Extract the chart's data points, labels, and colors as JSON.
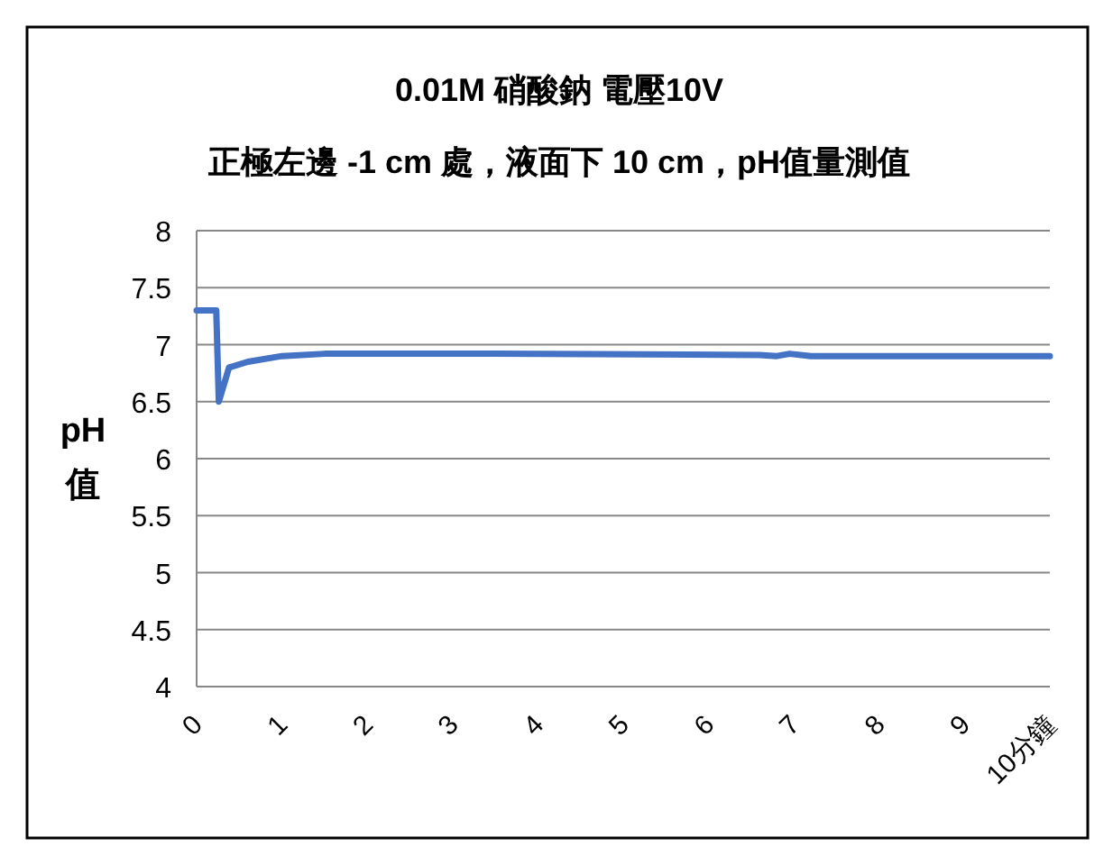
{
  "chart_data": {
    "type": "line",
    "title": "0.01M  硝酸鈉    電壓10V",
    "subtitle": "正極左邊 -1 cm 處，液面下 10 cm，pH值量測值",
    "ylabel": "pH\n值",
    "xlim": [
      0,
      10
    ],
    "xticks": [
      0,
      1,
      2,
      3,
      4,
      5,
      6,
      7,
      8,
      9,
      {
        "value": 10,
        "label": "10分鐘"
      }
    ],
    "ylim": [
      4,
      8
    ],
    "yticks": [
      4,
      4.5,
      5,
      5.5,
      6,
      6.5,
      7,
      7.5,
      8
    ],
    "grid": "y",
    "line_style": "solid",
    "series": [
      {
        "color": "#4472c4",
        "x": [
          0,
          0.23,
          0.26,
          0.38,
          0.6,
          1.0,
          1.5,
          3.5,
          6.6,
          6.8,
          6.95,
          7.2,
          10
        ],
        "values": [
          7.3,
          7.3,
          6.5,
          6.8,
          6.85,
          6.9,
          6.92,
          6.92,
          6.91,
          6.9,
          6.92,
          6.9,
          6.9
        ]
      }
    ]
  }
}
